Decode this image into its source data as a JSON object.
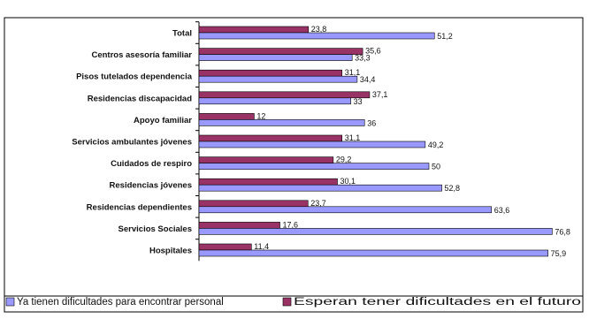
{
  "chart_data": {
    "type": "bar",
    "orientation": "horizontal",
    "categories": [
      "Total",
      "Centros asesoría familiar",
      "Pisos tutelados dependencia",
      "Residencias discapacidad",
      "Apoyo familiar",
      "Servicios ambulantes jóvenes",
      "Cuidados de respiro",
      "Residencias jóvenes",
      "Residencias dependientes",
      "Servicios Sociales",
      "Hospitales"
    ],
    "series": [
      {
        "name": "Ya tienen dificultades para encontrar personal",
        "color": "#9999ff",
        "values": [
          51.2,
          33.3,
          34.4,
          33,
          36,
          49.2,
          50,
          52.8,
          63.6,
          76.8,
          75.9
        ],
        "labels": [
          "51,2",
          "33,3",
          "34,4",
          "33",
          "36",
          "49,2",
          "50",
          "52,8",
          "63,6",
          "76,8",
          "75,9"
        ]
      },
      {
        "name": "Esperan tener dificultades en el futuro",
        "color": "#993366",
        "values": [
          23.8,
          35.6,
          31.1,
          37.1,
          12,
          31.1,
          29.2,
          30.1,
          23.7,
          17.6,
          11.4
        ],
        "labels": [
          "23,8",
          "35,6",
          "31,1",
          "37,1",
          "12",
          "31,1",
          "29,2",
          "30,1",
          "23,7",
          "17,6",
          "11,4"
        ]
      }
    ],
    "xlim": [
      0,
      80
    ],
    "grid": false,
    "legend": "bottom"
  }
}
